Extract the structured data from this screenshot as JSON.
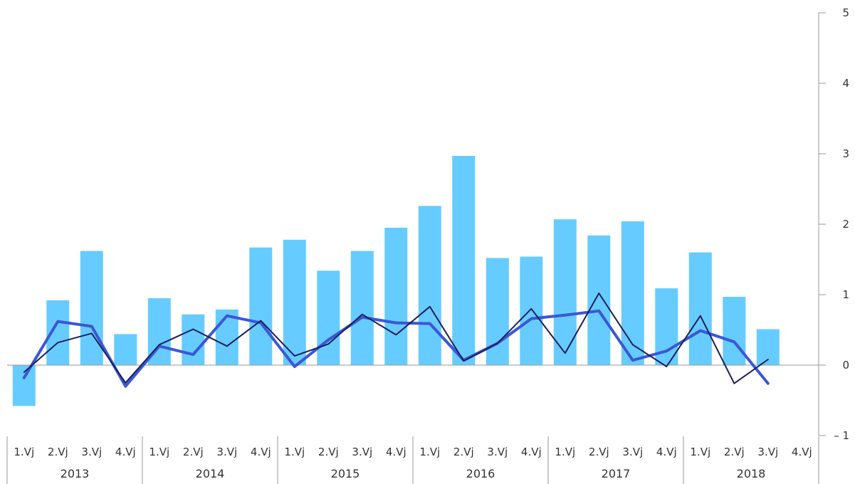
{
  "chart_data": {
    "type": "bar",
    "categories": [
      "1.Vj",
      "2.Vj",
      "3.Vj",
      "4.Vj",
      "1.Vj",
      "2.Vj",
      "3.Vj",
      "4.Vj",
      "1.Vj",
      "2.Vj",
      "3.Vj",
      "4.Vj",
      "1.Vj",
      "2.Vj",
      "3.Vj",
      "4.Vj",
      "1.Vj",
      "2.Vj",
      "3.Vj",
      "4.Vj",
      "1.Vj",
      "2.Vj",
      "3.Vj",
      "4.Vj"
    ],
    "years": [
      "2013",
      "2014",
      "2015",
      "2016",
      "2017",
      "2018"
    ],
    "ylim": [
      -1,
      5
    ],
    "yticks": [
      -1,
      0,
      1,
      2,
      3,
      4,
      5
    ],
    "ytick_labels": [
      "– 1",
      "0",
      "1",
      "2",
      "3",
      "4",
      "5"
    ],
    "y_axis_position": "right",
    "grid": false,
    "series": [
      {
        "type": "bar",
        "color": "#66CCFF",
        "values": [
          -0.58,
          0.92,
          1.62,
          0.44,
          0.95,
          0.72,
          0.79,
          1.67,
          1.78,
          1.34,
          1.62,
          1.95,
          2.26,
          2.97,
          1.52,
          1.54,
          2.07,
          1.84,
          2.04,
          1.09,
          1.6,
          0.97,
          0.51,
          null
        ]
      },
      {
        "type": "line",
        "color": "#3B57D6",
        "stroke": "thick",
        "values": [
          -0.18,
          0.62,
          0.55,
          -0.3,
          0.27,
          0.15,
          0.7,
          0.6,
          -0.02,
          0.36,
          0.68,
          0.6,
          0.59,
          0.07,
          0.31,
          0.66,
          0.71,
          0.77,
          0.07,
          0.2,
          0.49,
          0.33,
          -0.26,
          null
        ]
      },
      {
        "type": "line",
        "color": "#1A1F5A",
        "stroke": "thin",
        "values": [
          -0.1,
          0.32,
          0.45,
          -0.25,
          0.29,
          0.51,
          0.27,
          0.63,
          0.13,
          0.3,
          0.72,
          0.43,
          0.83,
          0.06,
          0.31,
          0.8,
          0.17,
          1.02,
          0.29,
          -0.02,
          0.7,
          -0.26,
          0.08,
          null
        ]
      }
    ]
  }
}
